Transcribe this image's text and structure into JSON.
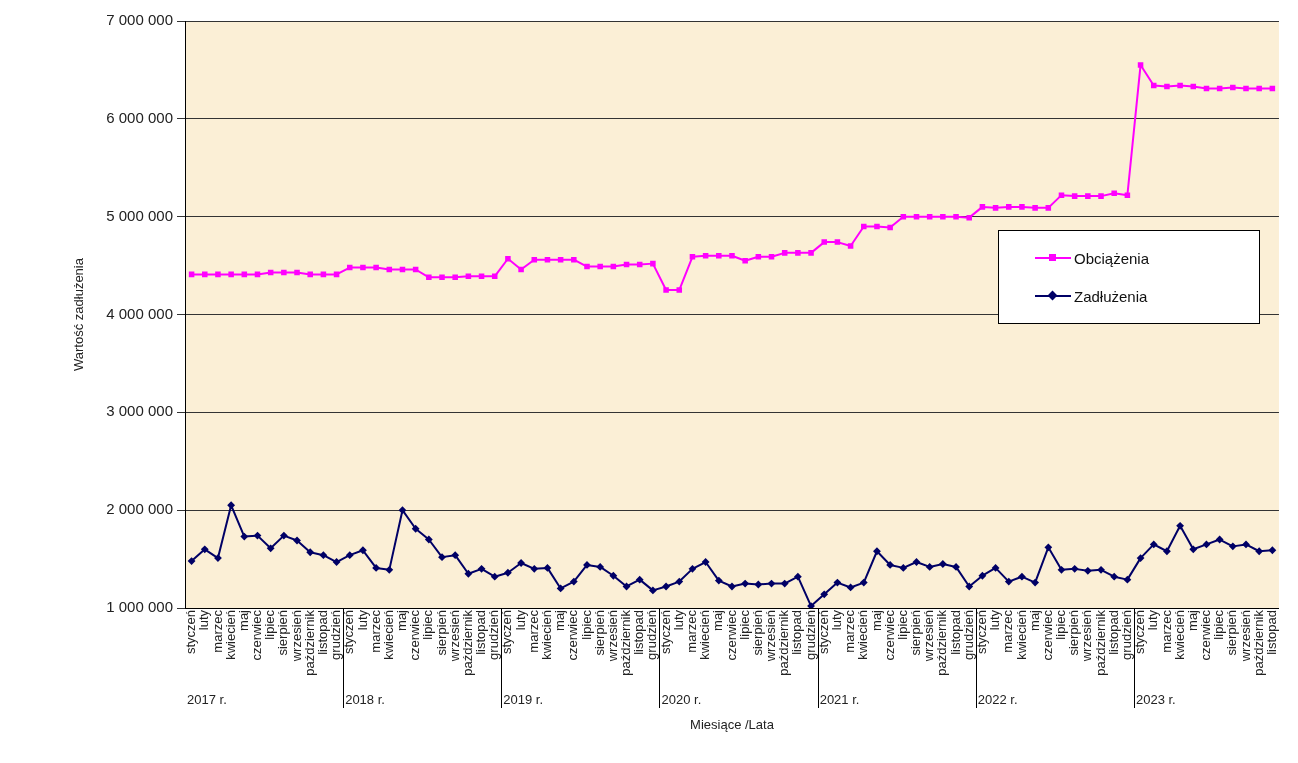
{
  "chart_data": {
    "type": "line",
    "xlabel": "Miesiące /Lata",
    "ylabel": "Wartość zadłużenia",
    "categories": [
      "styczeń",
      "luty",
      "marzec",
      "kwiecień",
      "maj",
      "czerwiec",
      "lipiec",
      "sierpień",
      "wrzesień",
      "październik",
      "listopad",
      "grudzień",
      "styczeń",
      "luty",
      "marzec",
      "kwiecień",
      "maj",
      "czerwiec",
      "lipiec",
      "sierpień",
      "wrzesień",
      "październik",
      "listopad",
      "grudzień",
      "styczeń",
      "luty",
      "marzec",
      "kwiecień",
      "maj",
      "czerwiec",
      "lipiec",
      "sierpień",
      "wrzesień",
      "październik",
      "listopad",
      "grudzień",
      "styczeń",
      "luty",
      "marzec",
      "kwiecień",
      "maj",
      "czerwiec",
      "lipiec",
      "sierpień",
      "wrzesień",
      "październik",
      "listopad",
      "grudzień",
      "styczeń",
      "luty",
      "marzec",
      "kwiecień",
      "maj",
      "czerwiec",
      "lipiec",
      "sierpień",
      "wrzesień",
      "październik",
      "listopad",
      "grudzień",
      "styczeń",
      "luty",
      "marzec",
      "kwiecień",
      "maj",
      "czerwiec",
      "lipiec",
      "sierpień",
      "wrzesień",
      "październik",
      "listopad",
      "grudzień",
      "styczeń",
      "luty",
      "marzec",
      "kwiecień",
      "maj",
      "czerwiec",
      "lipiec",
      "sierpień",
      "wrzesień",
      "październik",
      "listopad"
    ],
    "series": [
      {
        "name": "Obciążenia",
        "color": "#ff00ff",
        "marker": "square",
        "values": [
          4410000,
          4410000,
          4410000,
          4410000,
          4410000,
          4410000,
          4430000,
          4430000,
          4430000,
          4410000,
          4410000,
          4410000,
          4480000,
          4480000,
          4480000,
          4460000,
          4460000,
          4460000,
          4380000,
          4380000,
          4380000,
          4390000,
          4390000,
          4390000,
          4570000,
          4460000,
          4560000,
          4560000,
          4560000,
          4560000,
          4490000,
          4490000,
          4490000,
          4510000,
          4510000,
          4520000,
          4250000,
          4250000,
          4590000,
          4600000,
          4600000,
          4600000,
          4550000,
          4590000,
          4590000,
          4630000,
          4630000,
          4630000,
          4740000,
          4740000,
          4700000,
          4900000,
          4900000,
          4890000,
          5000000,
          5000000,
          5000000,
          5000000,
          5000000,
          4990000,
          5100000,
          5090000,
          5100000,
          5100000,
          5090000,
          5090000,
          5220000,
          5210000,
          5210000,
          5210000,
          5240000,
          5220000,
          6550000,
          6340000,
          6330000,
          6340000,
          6330000,
          6310000,
          6310000,
          6320000,
          6310000,
          6310000,
          6310000
        ]
      },
      {
        "name": "Zadłużenia",
        "color": "#000066",
        "marker": "diamond",
        "values": [
          1480000,
          1600000,
          1510000,
          2050000,
          1730000,
          1740000,
          1610000,
          1740000,
          1690000,
          1570000,
          1540000,
          1470000,
          1540000,
          1590000,
          1410000,
          1390000,
          2000000,
          1810000,
          1700000,
          1520000,
          1540000,
          1350000,
          1400000,
          1320000,
          1360000,
          1460000,
          1400000,
          1410000,
          1200000,
          1270000,
          1440000,
          1420000,
          1330000,
          1220000,
          1290000,
          1180000,
          1220000,
          1270000,
          1400000,
          1470000,
          1280000,
          1220000,
          1250000,
          1240000,
          1250000,
          1250000,
          1320000,
          1020000,
          1140000,
          1260000,
          1210000,
          1260000,
          1580000,
          1440000,
          1410000,
          1470000,
          1420000,
          1450000,
          1420000,
          1220000,
          1330000,
          1410000,
          1270000,
          1320000,
          1260000,
          1620000,
          1390000,
          1400000,
          1380000,
          1390000,
          1320000,
          1290000,
          1510000,
          1650000,
          1580000,
          1840000,
          1600000,
          1650000,
          1700000,
          1630000,
          1650000,
          1580000,
          1590000
        ]
      }
    ],
    "ylim": [
      1000000,
      7000000
    ],
    "yticks": [
      {
        "value": 1000000,
        "label": "1 000 000"
      },
      {
        "value": 2000000,
        "label": "2 000 000"
      },
      {
        "value": 3000000,
        "label": "3 000 000"
      },
      {
        "value": 4000000,
        "label": "4 000 000"
      },
      {
        "value": 5000000,
        "label": "5 000 000"
      },
      {
        "value": 6000000,
        "label": "6 000 000"
      },
      {
        "value": 7000000,
        "label": "7 000 000"
      }
    ],
    "grid": "y",
    "legend": "right",
    "line_style": "solid",
    "annotations": [
      "2017 r.",
      "2018 r.",
      "2019 r.",
      "2020 r.",
      "2021 r.",
      "2022 r.",
      "2023 r."
    ]
  }
}
